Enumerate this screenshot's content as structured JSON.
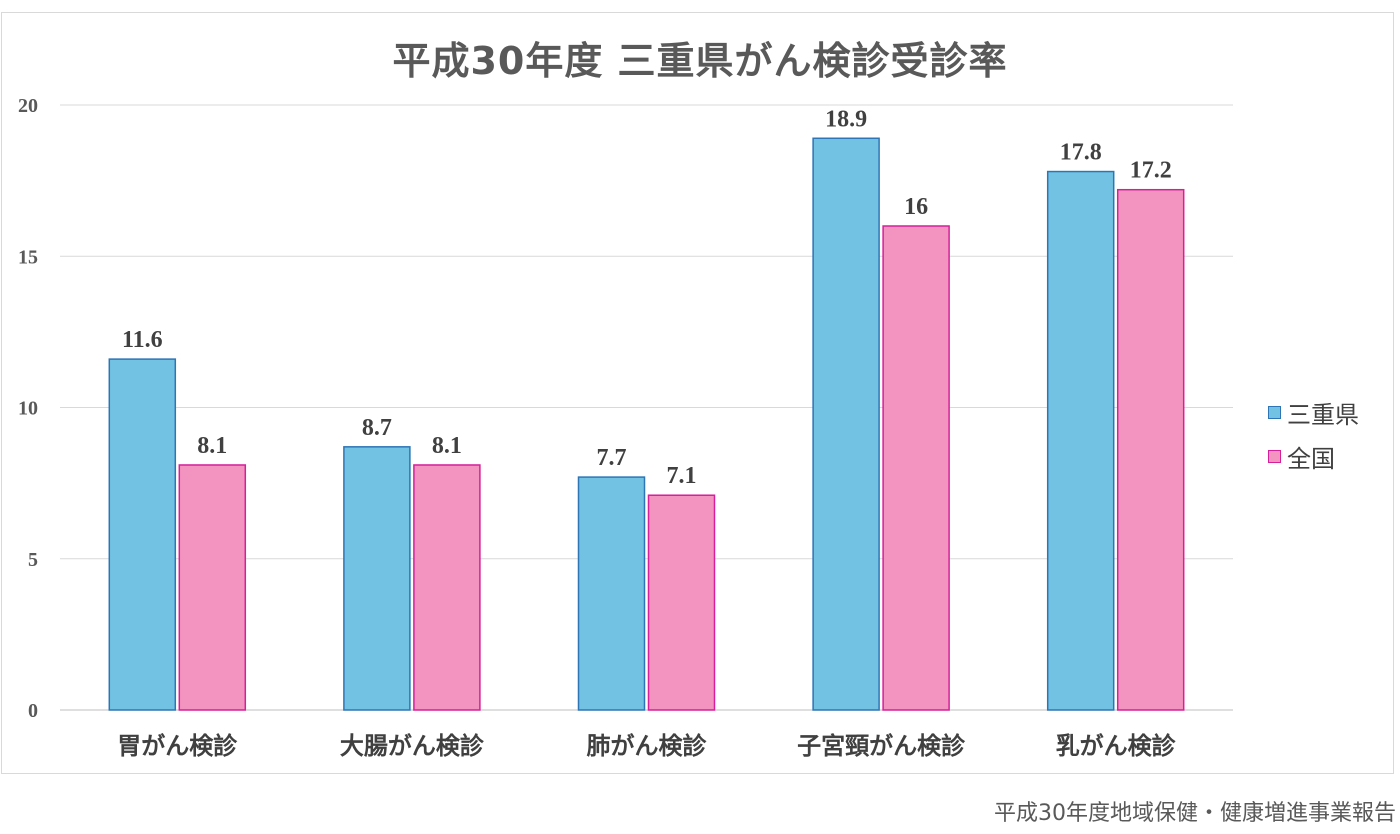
{
  "chart_data": {
    "type": "bar",
    "title": "平成30年度 三重県がん検診受診率",
    "categories": [
      "胃がん検診",
      "大腸がん検診",
      "肺がん検診",
      "子宮頸がん検診",
      "乳がん検診"
    ],
    "series": [
      {
        "name": "三重県",
        "values": [
          11.6,
          8.7,
          7.7,
          18.9,
          17.8
        ],
        "data_labels": [
          "11.6",
          "8.7",
          "7.7",
          "18.9",
          "17.8"
        ],
        "color": "#72c3e3",
        "stroke": "#2e75b6"
      },
      {
        "name": "全国",
        "values": [
          8.1,
          8.1,
          7.1,
          16,
          17.2
        ],
        "data_labels": [
          "8.1",
          "8.1",
          "7.1",
          "16",
          "17.2"
        ],
        "color": "#f393bf",
        "stroke": "#d61f9a"
      }
    ],
    "yticks": [
      "0",
      "5",
      "10",
      "15",
      "20"
    ],
    "ylim": [
      0,
      20
    ],
    "grid": true,
    "legend_position": "right"
  },
  "source_note": "平成30年度地域保健・健康増進事業報告"
}
